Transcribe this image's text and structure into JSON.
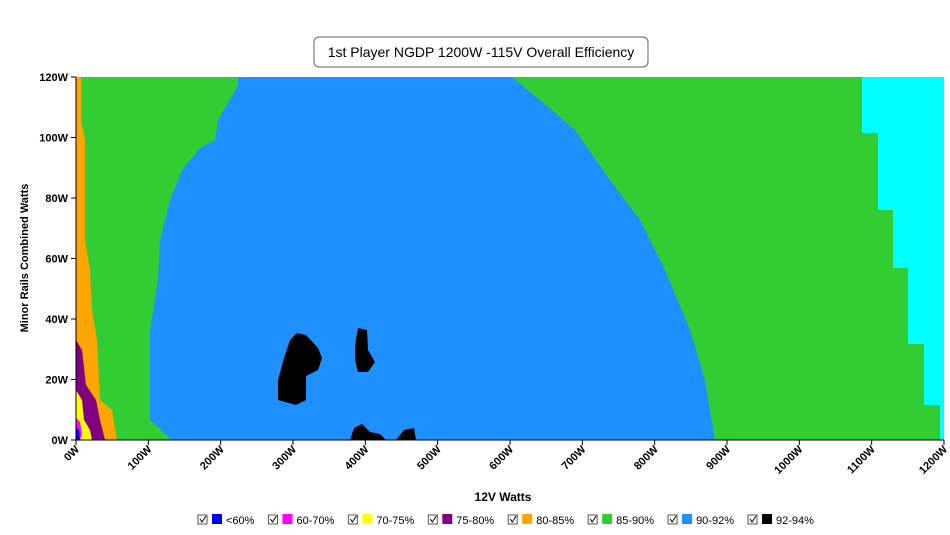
{
  "chart_data": {
    "type": "contour",
    "title": "1st Player NGDP 1200W -115V Overall Efficiency",
    "xlabel": "12V Watts",
    "ylabel": "Minor Rails Combined Watts",
    "xlim": [
      0,
      1200
    ],
    "ylim": [
      0,
      120
    ],
    "xticks": [
      {
        "value": 0,
        "label": "0W"
      },
      {
        "value": 100,
        "label": "100W"
      },
      {
        "value": 200,
        "label": "200W"
      },
      {
        "value": 300,
        "label": "300W"
      },
      {
        "value": 400,
        "label": "400W"
      },
      {
        "value": 500,
        "label": "500W"
      },
      {
        "value": 600,
        "label": "600W"
      },
      {
        "value": 700,
        "label": "700W"
      },
      {
        "value": 800,
        "label": "800W"
      },
      {
        "value": 900,
        "label": "900W"
      },
      {
        "value": 1000,
        "label": "1000W"
      },
      {
        "value": 1100,
        "label": "1100W"
      },
      {
        "value": 1200,
        "label": "1200W"
      }
    ],
    "yticks": [
      {
        "value": 0,
        "label": "0W"
      },
      {
        "value": 20,
        "label": "20W"
      },
      {
        "value": 40,
        "label": "40W"
      },
      {
        "value": 60,
        "label": "60W"
      },
      {
        "value": 80,
        "label": "80W"
      },
      {
        "value": 100,
        "label": "100W"
      },
      {
        "value": 120,
        "label": "120W"
      }
    ],
    "series": [
      {
        "name": "<60%",
        "color": "#0000ff"
      },
      {
        "name": "60-70%",
        "color": "#ff00ff"
      },
      {
        "name": "70-75%",
        "color": "#ffff00"
      },
      {
        "name": "75-80%",
        "color": "#800080"
      },
      {
        "name": "80-85%",
        "color": "#ffa500"
      },
      {
        "name": "85-90%",
        "color": "#32cd32"
      },
      {
        "name": "90-92%",
        "color": "#1e90ff"
      },
      {
        "name": "92-94%",
        "color": "#000000"
      }
    ],
    "extra_color": "#00ffff"
  }
}
